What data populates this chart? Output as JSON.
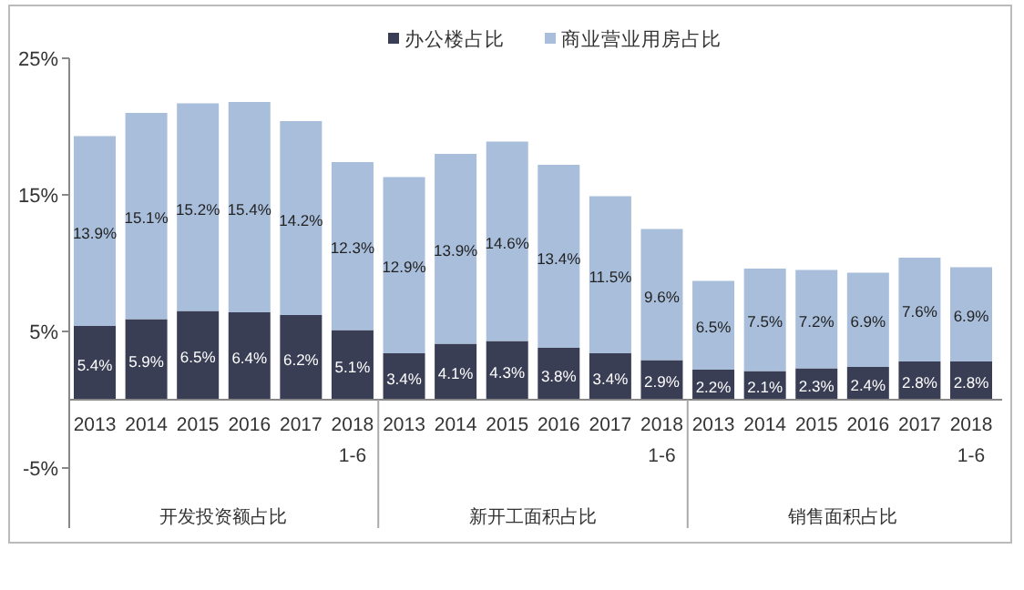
{
  "chart_data": {
    "type": "bar",
    "stacked": true,
    "categories": [
      "2013",
      "2014",
      "2015",
      "2016",
      "2017",
      "2018\n1-6",
      "2013",
      "2014",
      "2015",
      "2016",
      "2017",
      "2018\n1-6",
      "2013",
      "2014",
      "2015",
      "2016",
      "2017",
      "2018\n1-6"
    ],
    "series": [
      {
        "name": "办公楼占比",
        "color": "#3a3e55",
        "values": [
          5.4,
          5.9,
          6.5,
          6.4,
          6.2,
          5.1,
          3.4,
          4.1,
          4.3,
          3.8,
          3.4,
          2.9,
          2.2,
          2.1,
          2.3,
          2.4,
          2.8,
          2.8
        ],
        "value_labels": [
          "5.4%",
          "5.9%",
          "6.5%",
          "6.4%",
          "6.2%",
          "5.1%",
          "3.4%",
          "4.1%",
          "4.3%",
          "3.8%",
          "3.4%",
          "2.9%",
          "2.2%",
          "2.1%",
          "2.3%",
          "2.4%",
          "2.8%",
          "2.8%"
        ]
      },
      {
        "name": "商业营业用房占比",
        "color": "#a8bedb",
        "values": [
          13.9,
          15.1,
          15.2,
          15.4,
          14.2,
          12.3,
          12.9,
          13.9,
          14.6,
          13.4,
          11.5,
          9.6,
          6.5,
          7.5,
          7.2,
          6.9,
          7.6,
          6.9
        ],
        "value_labels": [
          "13.9%",
          "15.1%",
          "15.2%",
          "15.4%",
          "14.2%",
          "12.3%",
          "12.9%",
          "13.9%",
          "14.6%",
          "13.4%",
          "11.5%",
          "9.6%",
          "6.5%",
          "7.5%",
          "7.2%",
          "6.9%",
          "7.6%",
          "6.9%"
        ]
      }
    ],
    "annotations": [
      "开发投资额占比",
      "新开工面积占比",
      "销售面积占比"
    ],
    "ylim": [
      -9.4,
      25
    ],
    "yticks": [
      {
        "value": -5,
        "label": "-5%"
      },
      {
        "value": 5,
        "label": "5%"
      },
      {
        "value": 15,
        "label": "15%"
      },
      {
        "value": 25,
        "label": "25%"
      }
    ],
    "grid": false,
    "legend": "top"
  }
}
